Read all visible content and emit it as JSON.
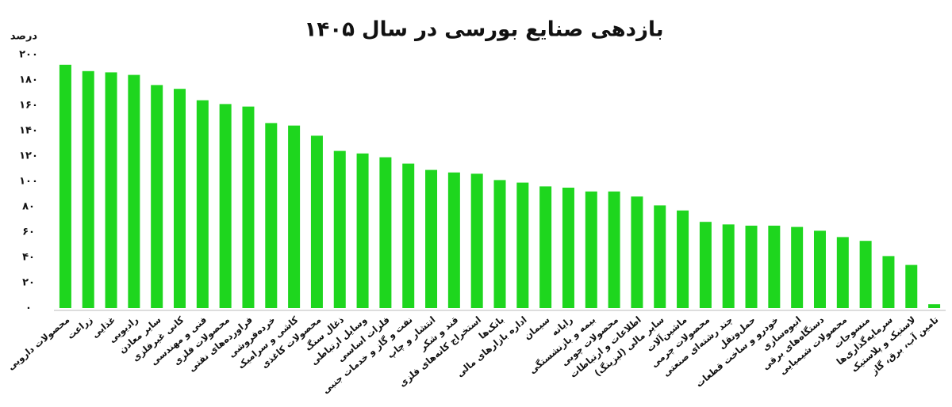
{
  "chart_data": {
    "type": "bar",
    "title": "بازدهی صنایع بورسی در سال ۱۴۰۵",
    "y_label": "درصد",
    "color": "#1ed61e",
    "categories": [
      "محصولات دارویی",
      "زراعت",
      "غذایی",
      "رادیویی",
      "سایر معادن",
      "کانی غیرفلزی",
      "فنی و مهندسی",
      "محصولات فلزی",
      "فراورده‌های نفتی",
      "خرده‌فروشی",
      "کاشی و سرامیک",
      "محصولات کاغذی",
      "ذغال سنگ",
      "وسایل ارتباطی",
      "فلزات اساسی",
      "نفت و گاز و خدمات جنبی",
      "انتشار و چاپ",
      "قند و شکر",
      "استخراج کانه‌های فلزی",
      "بانک‌ها",
      "اداره بازارهای مالی",
      "سیمان",
      "رایانه",
      "بیمه و بازنشستگی",
      "محصولات چوبی",
      "اطلاعات و ارتباطات",
      "سایر مالی (لیزینگ)",
      "ماشین‌آلات",
      "محصولات چرمی",
      "چند رشته‌ای صنعتی",
      "حمل‌ونقل",
      "خودرو و ساخت قطعات",
      "انبوه‌سازی",
      "دستگاه‌های برقی",
      "محصولات شیمیایی",
      "منسوجات",
      "سرمایه‌گذاری‌ها",
      "لاستیک و پلاستیک",
      "تامین آب، برق، گاز"
    ],
    "values": [
      192,
      187,
      186,
      184,
      176,
      173,
      164,
      161,
      159,
      146,
      144,
      136,
      124,
      122,
      119,
      114,
      109,
      107,
      106,
      101,
      99,
      96,
      95,
      92,
      92,
      88,
      81,
      77,
      68,
      66,
      65,
      65,
      64,
      61,
      56,
      53,
      41,
      34,
      3
    ],
    "ylim": [
      0,
      200
    ],
    "yticks": [
      {
        "value": 0,
        "label": "۰"
      },
      {
        "value": 20,
        "label": "۲۰"
      },
      {
        "value": 40,
        "label": "۴۰"
      },
      {
        "value": 60,
        "label": "۶۰"
      },
      {
        "value": 80,
        "label": "۸۰"
      },
      {
        "value": 100,
        "label": "۱۰۰"
      },
      {
        "value": 120,
        "label": "۱۲۰"
      },
      {
        "value": 140,
        "label": "۱۴۰"
      },
      {
        "value": 160,
        "label": "۱۶۰"
      },
      {
        "value": 180,
        "label": "۱۸۰"
      },
      {
        "value": 200,
        "label": "۲۰۰"
      }
    ],
    "grid": false
  }
}
